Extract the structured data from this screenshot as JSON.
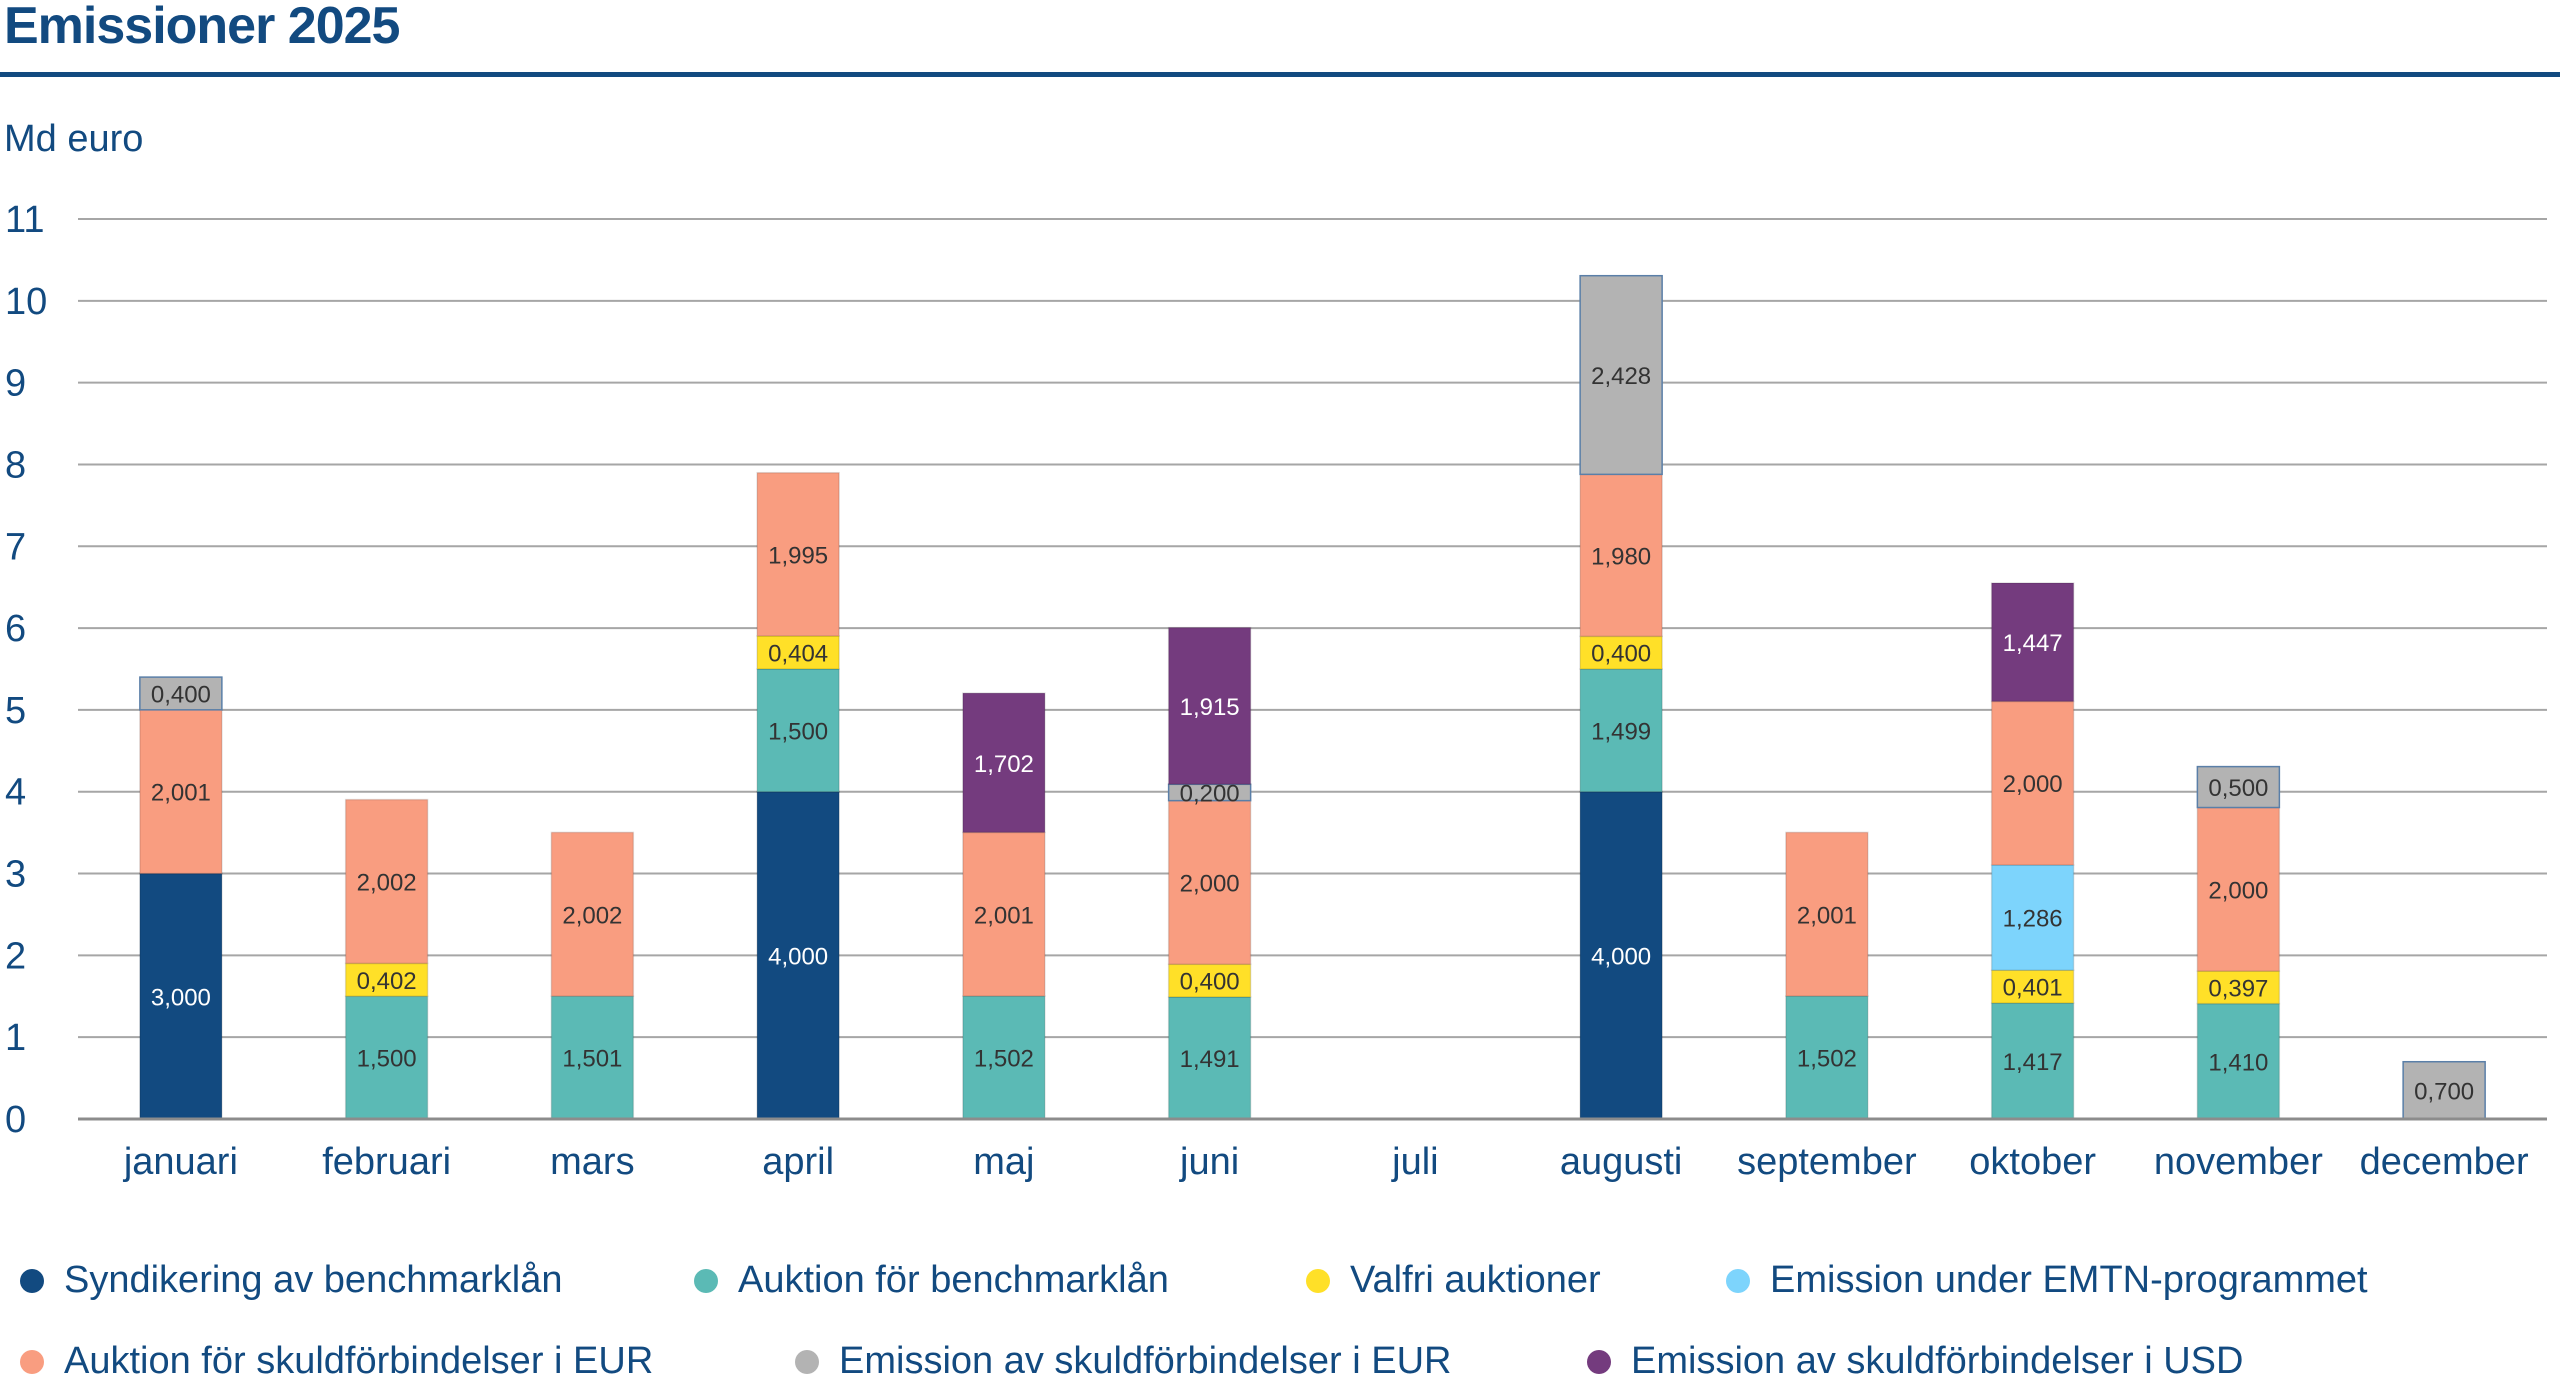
{
  "chart_data": {
    "type": "bar",
    "stacked": true,
    "title": "Emissioner 2025",
    "ylabel": "Md euro",
    "xlabel": "",
    "ylim": [
      0,
      11
    ],
    "yticks": [
      "0",
      "1",
      "2",
      "3",
      "4",
      "5",
      "6",
      "7",
      "8",
      "9",
      "10",
      "11"
    ],
    "grid": true,
    "legend_position": "bottom",
    "categories": [
      "januari",
      "februari",
      "mars",
      "april",
      "maj",
      "juni",
      "juli",
      "augusti",
      "september",
      "oktober",
      "november",
      "december"
    ],
    "series": [
      {
        "name": "Syndikering av benchmarklån",
        "color": "#124a80",
        "label_color": "#ffffff",
        "values": [
          3.0,
          null,
          null,
          4.0,
          null,
          null,
          null,
          4.0,
          null,
          null,
          null,
          null
        ]
      },
      {
        "name": "Auktion för benchmarklån",
        "color": "#5bbab5",
        "label_color": "#333333",
        "values": [
          null,
          1.5,
          1.501,
          1.5,
          1.502,
          1.491,
          null,
          1.499,
          1.502,
          1.417,
          1.41,
          null
        ]
      },
      {
        "name": "Valfri auktioner",
        "color": "#ffe028",
        "label_color": "#333333",
        "values": [
          null,
          0.402,
          null,
          0.404,
          null,
          0.4,
          null,
          0.4,
          null,
          0.401,
          0.397,
          null
        ]
      },
      {
        "name": "Emission under EMTN-programmet",
        "color": "#7dd4fc",
        "label_color": "#333333",
        "values": [
          null,
          null,
          null,
          null,
          null,
          null,
          null,
          null,
          null,
          1.286,
          null,
          null
        ]
      },
      {
        "name": "Auktion för skuldförbindelser i EUR",
        "color": "#f99d80",
        "label_color": "#333333",
        "values": [
          2.001,
          2.002,
          2.002,
          1.995,
          2.001,
          2.0,
          null,
          1.98,
          2.001,
          2.0,
          2.0,
          null
        ]
      },
      {
        "name": "Emission av skuldförbindelser i EUR",
        "color": "#b3b3b3",
        "label_color": "#333333",
        "values": [
          0.4,
          null,
          null,
          null,
          null,
          0.2,
          null,
          2.428,
          null,
          null,
          0.5,
          0.7
        ]
      },
      {
        "name": "Emission av skuldförbindelser i USD",
        "color": "#743b7e",
        "label_color": "#ffffff",
        "values": [
          null,
          null,
          null,
          null,
          1.702,
          1.915,
          null,
          null,
          null,
          1.447,
          null,
          null
        ]
      }
    ]
  }
}
